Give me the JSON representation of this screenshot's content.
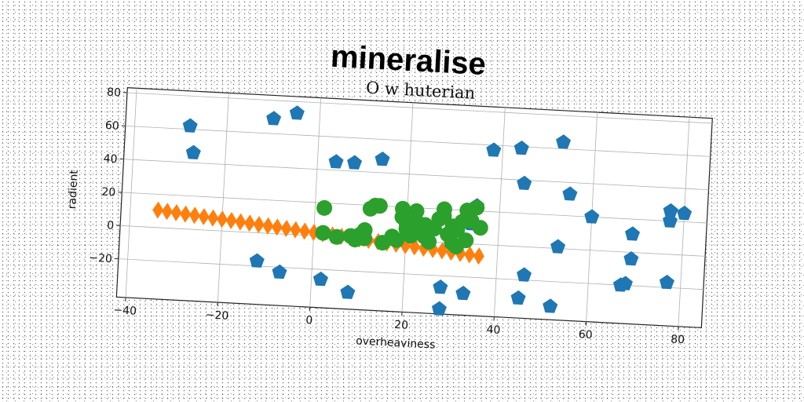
{
  "chart_data": {
    "type": "scatter",
    "title": "mineralise",
    "subtitle": "O w huterian",
    "xlabel": "overheaviness",
    "ylabel": "radient",
    "xlim": [
      -42,
      85
    ],
    "ylim": [
      -43,
      83
    ],
    "xticks": [
      -40,
      -20,
      0,
      20,
      40,
      60,
      80
    ],
    "yticks": [
      -20,
      0,
      20,
      40,
      60,
      80
    ],
    "grid": true,
    "series": [
      {
        "marker": "pentagon",
        "color": "#1f77b4",
        "points": [
          [
            -28,
            62
          ],
          [
            -27,
            46
          ],
          [
            -10,
            69
          ],
          [
            -5,
            73
          ],
          [
            4,
            45
          ],
          [
            8,
            45
          ],
          [
            14,
            48
          ],
          [
            38,
            57
          ],
          [
            44,
            59
          ],
          [
            53,
            64
          ],
          [
            45,
            38
          ],
          [
            55,
            33
          ],
          [
            60,
            20
          ],
          [
            77,
            26
          ],
          [
            77,
            20
          ],
          [
            80,
            25
          ],
          [
            69,
            11
          ],
          [
            53,
            1
          ],
          [
            69,
            -4
          ],
          [
            77,
            -17
          ],
          [
            67,
            -20
          ],
          [
            68,
            -19
          ],
          [
            46,
            -17
          ],
          [
            45,
            -31
          ],
          [
            52,
            -35
          ],
          [
            -12,
            -17
          ],
          [
            -7,
            -23
          ],
          [
            2,
            -26
          ],
          [
            8,
            -33
          ],
          [
            28,
            -27
          ],
          [
            28,
            -40
          ],
          [
            33,
            -30
          ],
          [
            35,
            23
          ],
          [
            34,
            12
          ]
        ]
      },
      {
        "marker": "diamond",
        "color": "#ff7f0e",
        "points": [
          [
            -34,
            10.5
          ],
          [
            -32,
            10
          ],
          [
            -30,
            9.5
          ],
          [
            -28,
            9
          ],
          [
            -26,
            8.5
          ],
          [
            -24,
            8
          ],
          [
            -22,
            7.5
          ],
          [
            -20,
            7
          ],
          [
            -18,
            6.5
          ],
          [
            -16,
            6
          ],
          [
            -14,
            5.5
          ],
          [
            -12,
            5
          ],
          [
            -10,
            4.5
          ],
          [
            -8,
            4
          ],
          [
            -6,
            3.5
          ],
          [
            -4,
            3
          ],
          [
            -2,
            2.5
          ],
          [
            0,
            2
          ],
          [
            2,
            1.5
          ],
          [
            4,
            1
          ],
          [
            6,
            0.5
          ],
          [
            8,
            0
          ],
          [
            10,
            -0.5
          ],
          [
            12,
            -1
          ],
          [
            14,
            -1.5
          ],
          [
            16,
            -2
          ],
          [
            18,
            -2.5
          ],
          [
            20,
            -3
          ],
          [
            22,
            -3.5
          ],
          [
            24,
            -4
          ],
          [
            26,
            -4.5
          ],
          [
            28,
            -5
          ],
          [
            30,
            -5.5
          ],
          [
            32,
            -6
          ],
          [
            34,
            -6.5
          ],
          [
            36,
            -7
          ]
        ]
      },
      {
        "marker": "circle",
        "color": "#2ca02c",
        "points": [
          [
            2,
            17
          ],
          [
            2,
            2
          ],
          [
            5,
            0
          ],
          [
            8,
            1
          ],
          [
            9,
            -1
          ],
          [
            10,
            2
          ],
          [
            11,
            0
          ],
          [
            11,
            5
          ],
          [
            12,
            18
          ],
          [
            13,
            20
          ],
          [
            14,
            20
          ],
          [
            15,
            -2
          ],
          [
            17,
            2
          ],
          [
            18,
            0
          ],
          [
            19,
            19
          ],
          [
            19,
            14
          ],
          [
            20,
            10
          ],
          [
            20,
            7
          ],
          [
            21,
            3
          ],
          [
            22,
            12
          ],
          [
            22,
            18
          ],
          [
            23,
            5
          ],
          [
            24,
            10
          ],
          [
            24,
            3
          ],
          [
            25,
            0
          ],
          [
            26,
            8
          ],
          [
            27,
            14
          ],
          [
            28,
            20
          ],
          [
            28,
            16
          ],
          [
            29,
            5
          ],
          [
            30,
            10
          ],
          [
            30,
            0
          ],
          [
            31,
            8
          ],
          [
            31,
            -2
          ],
          [
            32,
            13
          ],
          [
            33,
            20
          ],
          [
            33,
            2
          ],
          [
            34,
            14
          ],
          [
            35,
            22
          ],
          [
            36,
            10
          ]
        ]
      }
    ]
  }
}
